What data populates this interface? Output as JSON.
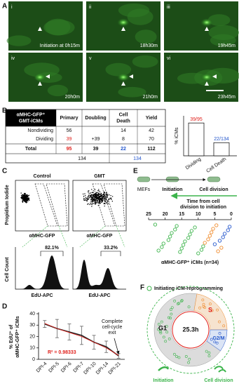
{
  "panel_labels": [
    "A",
    "B",
    "C",
    "D",
    "E",
    "F"
  ],
  "panel_a": {
    "tiles": [
      {
        "numeral": "i",
        "caption": "Initiation at 0h15m"
      },
      {
        "numeral": "ii",
        "caption": "18h30m"
      },
      {
        "numeral": "iii",
        "caption": "19h45m"
      },
      {
        "numeral": "iv",
        "caption": "20h0m"
      },
      {
        "numeral": "v",
        "caption": "21h0m"
      },
      {
        "numeral": "vi",
        "caption": "23h45m"
      }
    ]
  },
  "panel_b": {
    "table": {
      "header": [
        [
          "αMHC-GFP⁺",
          "GMT-iCMs"
        ],
        [
          "Primary"
        ],
        [
          "Doubling"
        ],
        [
          "Cell",
          "Death"
        ],
        [
          "Yield"
        ]
      ],
      "rows": [
        [
          "Nondividing",
          56,
          null,
          14,
          42
        ],
        [
          "Dividing",
          {
            "value": 39,
            "color": "#e0201b"
          },
          "+39",
          8,
          70
        ],
        [
          "Total",
          {
            "value": 95,
            "color": "#e0201b"
          },
          39,
          {
            "value": 22,
            "color": "#2255cc"
          },
          112
        ]
      ],
      "totals": [
        134,
        {
          "value": 134,
          "color": "#2255cc"
        }
      ]
    },
    "chart": {
      "type": "bar",
      "ylabel": "% iCMs",
      "categories": [
        "Dividing",
        "Cell Death"
      ],
      "values": [
        41.05,
        16.42
      ],
      "value_labels": [
        "39/95",
        "22/134"
      ],
      "label_colors": [
        "#e0201b",
        "#2255cc"
      ],
      "color": "#ffffff",
      "ylim": [
        0,
        50
      ]
    }
  },
  "panel_c": {
    "columns": [
      "Control",
      "GMT"
    ],
    "ylabel_top": "Propidium Iodide",
    "xlabels_top": [
      "αMHC-GFP",
      "αMHC-GFP"
    ],
    "ylabel_bottom": "Cell Count",
    "xlabels_bottom": [
      "EdU-APC",
      "EdU-APC"
    ],
    "percentages": [
      "82.1%",
      "33.2%"
    ]
  },
  "panel_d": {
    "chart": {
      "type": "line",
      "ylabel": [
        "% EdU⁺ of",
        "αMHC-GFP⁺ iCMs"
      ],
      "categories": [
        "DPI-4",
        "DPI-5",
        "DPI-6",
        "DPI-7",
        "DPI-10",
        "DPI-14",
        "DPI-21"
      ],
      "values": [
        31,
        27,
        24,
        21,
        15,
        11,
        3
      ],
      "errors": [
        3,
        8,
        7,
        8,
        6,
        5,
        2
      ],
      "color": "#222222",
      "fit_values": [
        31.5,
        27,
        23.5,
        20,
        15,
        10,
        3.5
      ],
      "fit_color": "#e0201b",
      "ylim": [
        0,
        40
      ],
      "yticks": [
        0,
        10,
        20,
        30,
        40
      ],
      "annotation": [
        "Complete",
        "cell-cycle",
        "exit"
      ],
      "r_squared": "R² = 0.98333"
    }
  },
  "panel_e": {
    "timeline": [
      "MEFs",
      "Initiation",
      "Cell division"
    ],
    "arrow_label": [
      "Time from cell",
      "division to initiation"
    ],
    "chart": {
      "type": "scatter",
      "xlabel": "αMHC-GFP⁺ iCMs (n=34)",
      "xlim": [
        25,
        0
      ],
      "xticks": [
        25,
        20,
        15,
        10,
        5,
        0
      ],
      "series": [
        {
          "color": "#3cb44b",
          "x": [
            23,
            22,
            21,
            20.5,
            19,
            18.5,
            18,
            17,
            16.5,
            15.5,
            15,
            14.5,
            14,
            13,
            12.5,
            12,
            11,
            10,
            9,
            8.5
          ]
        },
        {
          "color": "#f08a2a",
          "x": [
            8,
            7,
            6.5,
            6,
            5.5,
            4.5,
            4,
            3
          ]
        },
        {
          "color": "#2255cc",
          "x": [
            5,
            3.5,
            2.5,
            2,
            1,
            0.5
          ]
        }
      ]
    }
  },
  "panel_f": {
    "legend": "Initiating iCM-reprogramming",
    "phases": [
      "G1",
      "S",
      "G2/M"
    ],
    "center": "25.3h",
    "labels": [
      "Initiation",
      "Cell division"
    ]
  }
}
